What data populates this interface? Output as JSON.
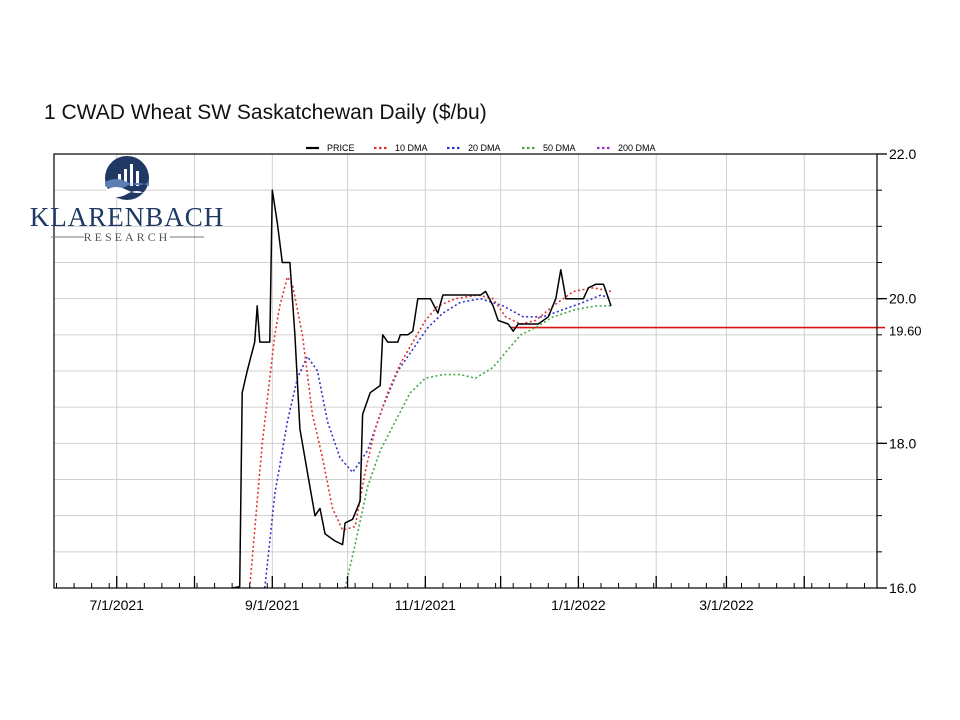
{
  "chart_data": {
    "type": "line",
    "title": "1 CWAD Wheat SW Saskatchewan Daily ($/bu)",
    "x_axis": {
      "type": "date",
      "range": [
        "2021-06-06",
        "2022-04-30"
      ],
      "tick_labels": [
        "7/1/2021",
        "9/1/2021",
        "11/1/2021",
        "1/1/2022",
        "3/1/2022"
      ]
    },
    "y_axis": {
      "range": [
        16.0,
        22.0
      ],
      "position": "right",
      "tick_labels": [
        "16.0",
        "18.0",
        "20.0",
        "22.0"
      ]
    },
    "grid": true,
    "legend": {
      "placement": "top",
      "entries": [
        "PRICE",
        "10 DMA",
        "20 DMA",
        "50 DMA",
        "200 DMA"
      ]
    },
    "series": [
      {
        "name": "PRICE",
        "color": "#000000",
        "style": "solid",
        "points": [
          [
            "2021-08-16",
            16.0
          ],
          [
            "2021-08-19",
            16.02
          ],
          [
            "2021-08-20",
            18.7
          ],
          [
            "2021-08-22",
            19.0
          ],
          [
            "2021-08-25",
            19.4
          ],
          [
            "2021-08-26",
            19.9
          ],
          [
            "2021-08-27",
            19.4
          ],
          [
            "2021-08-29",
            19.4
          ],
          [
            "2021-08-31",
            19.4
          ],
          [
            "2021-09-01",
            21.5
          ],
          [
            "2021-09-03",
            21.05
          ],
          [
            "2021-09-05",
            20.5
          ],
          [
            "2021-09-08",
            20.5
          ],
          [
            "2021-09-10",
            19.5
          ],
          [
            "2021-09-12",
            18.2
          ],
          [
            "2021-09-15",
            17.6
          ],
          [
            "2021-09-18",
            17.0
          ],
          [
            "2021-09-20",
            17.1
          ],
          [
            "2021-09-22",
            16.75
          ],
          [
            "2021-09-26",
            16.65
          ],
          [
            "2021-09-29",
            16.6
          ],
          [
            "2021-09-30",
            16.9
          ],
          [
            "2021-10-03",
            16.95
          ],
          [
            "2021-10-06",
            17.2
          ],
          [
            "2021-10-07",
            18.4
          ],
          [
            "2021-10-10",
            18.7
          ],
          [
            "2021-10-14",
            18.8
          ],
          [
            "2021-10-15",
            19.5
          ],
          [
            "2021-10-17",
            19.4
          ],
          [
            "2021-10-21",
            19.4
          ],
          [
            "2021-10-22",
            19.5
          ],
          [
            "2021-10-25",
            19.5
          ],
          [
            "2021-10-27",
            19.55
          ],
          [
            "2021-10-29",
            20.0
          ],
          [
            "2021-11-03",
            20.0
          ],
          [
            "2021-11-06",
            19.8
          ],
          [
            "2021-11-08",
            20.05
          ],
          [
            "2021-11-13",
            20.05
          ],
          [
            "2021-11-18",
            20.05
          ],
          [
            "2021-11-23",
            20.05
          ],
          [
            "2021-11-25",
            20.1
          ],
          [
            "2021-11-28",
            19.9
          ],
          [
            "2021-11-30",
            19.7
          ],
          [
            "2021-12-04",
            19.65
          ],
          [
            "2021-12-06",
            19.55
          ],
          [
            "2021-12-08",
            19.65
          ],
          [
            "2021-12-12",
            19.65
          ],
          [
            "2021-12-16",
            19.65
          ],
          [
            "2021-12-20",
            19.75
          ],
          [
            "2021-12-23",
            20.0
          ],
          [
            "2021-12-25",
            20.4
          ],
          [
            "2021-12-27",
            20.0
          ],
          [
            "2021-12-31",
            20.0
          ],
          [
            "2022-01-03",
            20.0
          ],
          [
            "2022-01-05",
            20.15
          ],
          [
            "2022-01-08",
            20.2
          ],
          [
            "2022-01-11",
            20.2
          ],
          [
            "2022-01-12",
            20.1
          ],
          [
            "2022-01-14",
            19.9
          ]
        ]
      },
      {
        "name": "10 DMA",
        "color": "#dd3333",
        "style": "dotted",
        "points": [
          [
            "2021-08-23",
            16.0
          ],
          [
            "2021-08-26",
            17.2
          ],
          [
            "2021-08-28",
            18.0
          ],
          [
            "2021-08-31",
            18.9
          ],
          [
            "2021-09-02",
            19.5
          ],
          [
            "2021-09-04",
            19.9
          ],
          [
            "2021-09-07",
            20.3
          ],
          [
            "2021-09-09",
            20.2
          ],
          [
            "2021-09-13",
            19.5
          ],
          [
            "2021-09-17",
            18.4
          ],
          [
            "2021-09-21",
            17.8
          ],
          [
            "2021-09-25",
            17.1
          ],
          [
            "2021-09-29",
            16.8
          ],
          [
            "2021-10-04",
            16.85
          ],
          [
            "2021-10-08",
            17.6
          ],
          [
            "2021-10-12",
            18.2
          ],
          [
            "2021-10-17",
            18.7
          ],
          [
            "2021-10-22",
            19.1
          ],
          [
            "2021-10-27",
            19.4
          ],
          [
            "2021-11-01",
            19.7
          ],
          [
            "2021-11-06",
            19.9
          ],
          [
            "2021-11-13",
            20.0
          ],
          [
            "2021-11-22",
            20.05
          ],
          [
            "2021-11-28",
            20.0
          ],
          [
            "2021-12-03",
            19.75
          ],
          [
            "2021-12-09",
            19.65
          ],
          [
            "2021-12-15",
            19.7
          ],
          [
            "2021-12-22",
            19.9
          ],
          [
            "2021-12-30",
            20.1
          ],
          [
            "2022-01-07",
            20.15
          ],
          [
            "2022-01-14",
            20.1
          ]
        ]
      },
      {
        "name": "20 DMA",
        "color": "#3333cc",
        "style": "dotted",
        "points": [
          [
            "2021-08-29",
            16.0
          ],
          [
            "2021-09-02",
            17.3
          ],
          [
            "2021-09-07",
            18.3
          ],
          [
            "2021-09-11",
            18.9
          ],
          [
            "2021-09-15",
            19.2
          ],
          [
            "2021-09-19",
            19.0
          ],
          [
            "2021-09-23",
            18.3
          ],
          [
            "2021-09-28",
            17.8
          ],
          [
            "2021-10-03",
            17.6
          ],
          [
            "2021-10-09",
            17.9
          ],
          [
            "2021-10-15",
            18.5
          ],
          [
            "2021-10-21",
            19.0
          ],
          [
            "2021-10-27",
            19.3
          ],
          [
            "2021-11-02",
            19.6
          ],
          [
            "2021-11-08",
            19.8
          ],
          [
            "2021-11-15",
            19.95
          ],
          [
            "2021-11-23",
            20.0
          ],
          [
            "2021-12-02",
            19.9
          ],
          [
            "2021-12-10",
            19.75
          ],
          [
            "2021-12-18",
            19.75
          ],
          [
            "2021-12-26",
            19.85
          ],
          [
            "2022-01-03",
            19.95
          ],
          [
            "2022-01-10",
            20.05
          ],
          [
            "2022-01-14",
            20.0
          ]
        ]
      },
      {
        "name": "50 DMA",
        "color": "#44aa44",
        "style": "dotted",
        "points": [
          [
            "2021-09-30",
            16.0
          ],
          [
            "2021-10-04",
            16.6
          ],
          [
            "2021-10-09",
            17.4
          ],
          [
            "2021-10-14",
            17.9
          ],
          [
            "2021-10-20",
            18.3
          ],
          [
            "2021-10-26",
            18.7
          ],
          [
            "2021-11-01",
            18.9
          ],
          [
            "2021-11-08",
            18.95
          ],
          [
            "2021-11-15",
            18.95
          ],
          [
            "2021-11-21",
            18.9
          ],
          [
            "2021-11-28",
            19.05
          ],
          [
            "2021-12-04",
            19.3
          ],
          [
            "2021-12-09",
            19.5
          ],
          [
            "2021-12-15",
            19.6
          ],
          [
            "2021-12-22",
            19.75
          ],
          [
            "2021-12-31",
            19.85
          ],
          [
            "2022-01-08",
            19.9
          ],
          [
            "2022-01-14",
            19.9
          ]
        ]
      },
      {
        "name": "200 DMA",
        "color": "#9933cc",
        "style": "dotted",
        "points": []
      }
    ],
    "reference_line": {
      "value": 19.6,
      "label": "19.60",
      "color": "#dd1111",
      "start": "2021-12-05"
    }
  },
  "logo": {
    "name": "KLARENBACH",
    "subtitle": "RESEARCH"
  }
}
